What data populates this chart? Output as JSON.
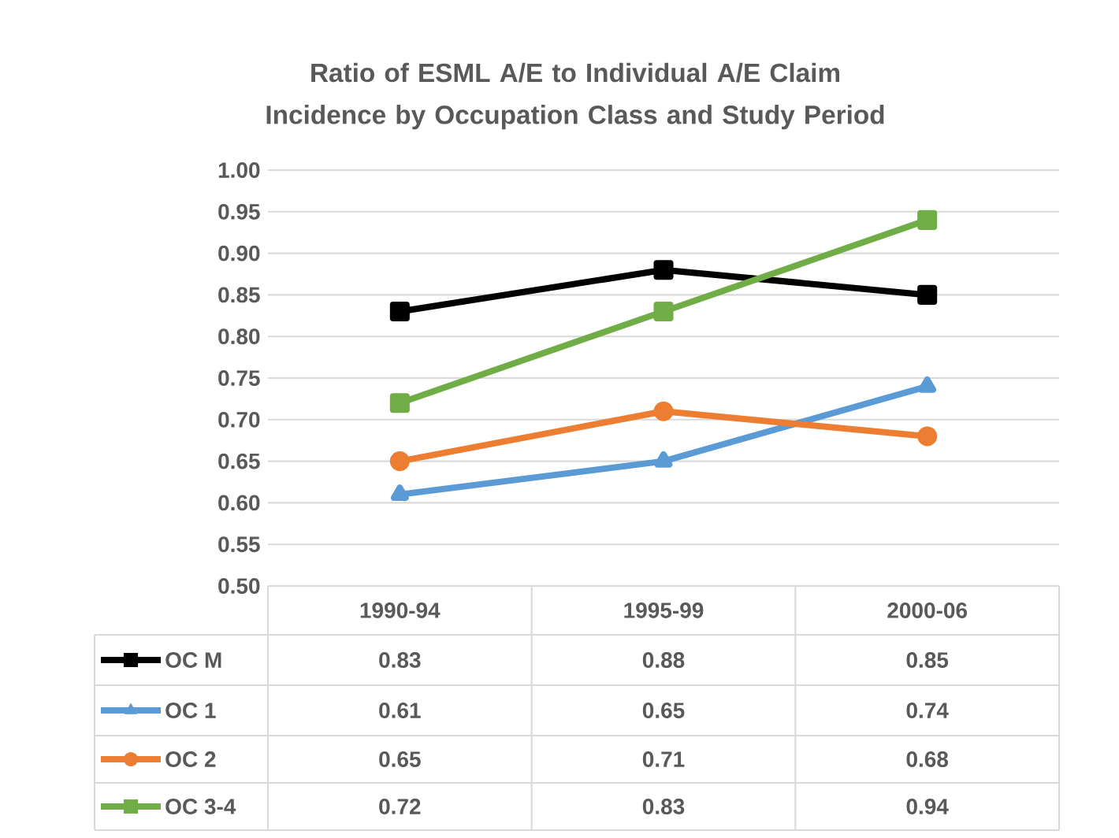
{
  "chart_data": {
    "type": "line",
    "title": "Ratio of ESML A/E to Individual A/E Claim Incidence by Occupation Class and Study Period",
    "categories": [
      "1990-94",
      "1995-99",
      "2000-06"
    ],
    "series": [
      {
        "name": "OC M",
        "color": "#000000",
        "marker": "square",
        "values": [
          0.83,
          0.88,
          0.85
        ]
      },
      {
        "name": "OC 1",
        "color": "#5b9bd5",
        "marker": "triangle",
        "values": [
          0.61,
          0.65,
          0.74
        ]
      },
      {
        "name": "OC 2",
        "color": "#ed7d31",
        "marker": "circle",
        "values": [
          0.65,
          0.71,
          0.68
        ]
      },
      {
        "name": "OC 3-4",
        "color": "#70ad47",
        "marker": "square",
        "values": [
          0.72,
          0.83,
          0.94
        ]
      }
    ],
    "ylim": [
      0.5,
      1.0
    ],
    "yticks": [
      {
        "value": 0.5,
        "label": "0.50"
      },
      {
        "value": 0.55,
        "label": "0.55"
      },
      {
        "value": 0.6,
        "label": "0.60"
      },
      {
        "value": 0.65,
        "label": "0.65"
      },
      {
        "value": 0.7,
        "label": "0.70"
      },
      {
        "value": 0.75,
        "label": "0.75"
      },
      {
        "value": 0.8,
        "label": "0.80"
      },
      {
        "value": 0.85,
        "label": "0.85"
      },
      {
        "value": 0.9,
        "label": "0.90"
      },
      {
        "value": 0.95,
        "label": "0.95"
      },
      {
        "value": 1.0,
        "label": "1.00"
      }
    ],
    "grid": "y",
    "legend": "bottom",
    "data_labels": true
  }
}
